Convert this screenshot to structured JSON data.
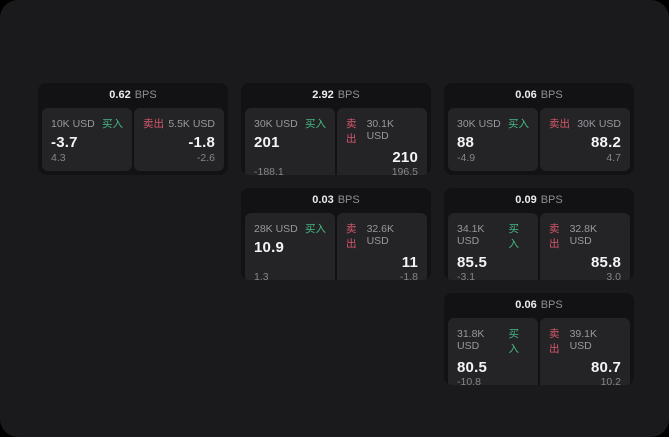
{
  "labels": {
    "bps_unit": "BPS",
    "buy": "买入",
    "sell": "卖出"
  },
  "colors": {
    "buy_green": "#46b984",
    "sell_red": "#d6566b",
    "panel_bg": "#242427",
    "card_bg": "#121214",
    "screen_bg": "#1a1a1c"
  },
  "cards": [
    {
      "bps": "0.62",
      "buy_amount": "10K USD",
      "buy_value": "-3.7",
      "buy_sub": "4.3",
      "sell_amount": "5.5K USD",
      "sell_value": "-1.8",
      "sell_sub": "-2.6"
    },
    {
      "bps": "2.92",
      "buy_amount": "30K USD",
      "buy_value": "201",
      "buy_sub": "-188.1",
      "sell_amount": "30.1K USD",
      "sell_value": "210",
      "sell_sub": "196.5"
    },
    {
      "bps": "0.06",
      "buy_amount": "30K USD",
      "buy_value": "88",
      "buy_sub": "-4.9",
      "sell_amount": "30K USD",
      "sell_value": "88.2",
      "sell_sub": "4.7"
    },
    {
      "bps": "0.03",
      "buy_amount": "28K USD",
      "buy_value": "10.9",
      "buy_sub": "1.3",
      "sell_amount": "32.6K USD",
      "sell_value": "11",
      "sell_sub": "-1.8"
    },
    {
      "bps": "0.09",
      "buy_amount": "34.1K USD",
      "buy_value": "85.5",
      "buy_sub": "-3.1",
      "sell_amount": "32.8K USD",
      "sell_value": "85.8",
      "sell_sub": "3.0"
    },
    {
      "bps": "0.06",
      "buy_amount": "31.8K USD",
      "buy_value": "80.5",
      "buy_sub": "-10.8",
      "sell_amount": "39.1K USD",
      "sell_value": "80.7",
      "sell_sub": "10.2"
    }
  ]
}
